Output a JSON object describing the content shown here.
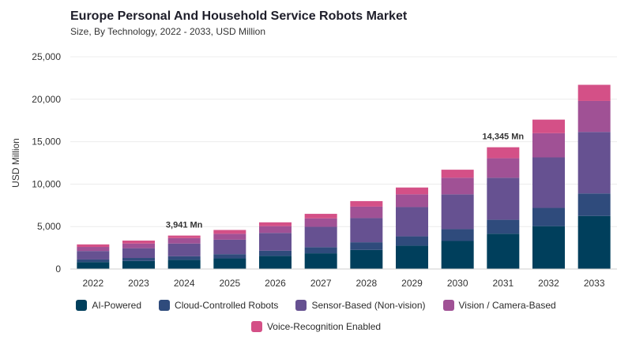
{
  "header": {
    "title": "Europe Personal And Household Service Robots Market",
    "subtitle": "Size, By Technology, 2022 - 2033, USD Million"
  },
  "colors": {
    "AI-Powered": "#003f5c",
    "Cloud-Controlled Robots": "#2f4b7c",
    "Sensor-Based (Non-vision)": "#665191",
    "Vision / Camera-Based": "#a05195",
    "Voice-Recognition Enabled": "#d45087"
  },
  "chart_data": {
    "type": "bar",
    "stacked": true,
    "title": "Europe Personal And Household Service Robots Market",
    "subtitle": "Size, By Technology, 2022 - 2033, USD Million",
    "xlabel": "",
    "ylabel": "USD Million",
    "ylim": [
      0,
      25000
    ],
    "yticks": [
      "0",
      "5,000",
      "10,000",
      "15,000",
      "20,000",
      "25,000"
    ],
    "ytick_values": [
      0,
      5000,
      10000,
      15000,
      20000,
      25000
    ],
    "grid": true,
    "legend_position": "bottom",
    "categories": [
      "2022",
      "2023",
      "2024",
      "2025",
      "2026",
      "2027",
      "2028",
      "2029",
      "2030",
      "2031",
      "2032",
      "2033"
    ],
    "series": [
      {
        "name": "AI-Powered",
        "values": [
          820,
          950,
          1080,
          1250,
          1550,
          1850,
          2250,
          2750,
          3300,
          4150,
          5050,
          6250
        ]
      },
      {
        "name": "Cloud-Controlled Robots",
        "values": [
          300,
          350,
          420,
          500,
          600,
          720,
          900,
          1100,
          1400,
          1650,
          2150,
          2650
        ]
      },
      {
        "name": "Sensor-Based (Non-vision)",
        "values": [
          1000,
          1150,
          1500,
          1700,
          2100,
          2400,
          2850,
          3450,
          4100,
          4950,
          5950,
          7250
        ]
      },
      {
        "name": "Vision / Camera-Based",
        "values": [
          480,
          550,
          641,
          700,
          800,
          1000,
          1350,
          1500,
          1950,
          2300,
          2850,
          3650
        ]
      },
      {
        "name": "Voice-Recognition Enabled",
        "values": [
          300,
          350,
          300,
          450,
          450,
          530,
          650,
          800,
          950,
          1295,
          1600,
          1900
        ]
      }
    ],
    "annotations": [
      {
        "category": "2024",
        "text": "3,941 Mn"
      },
      {
        "category": "2031",
        "text": "14,345 Mn"
      }
    ]
  }
}
